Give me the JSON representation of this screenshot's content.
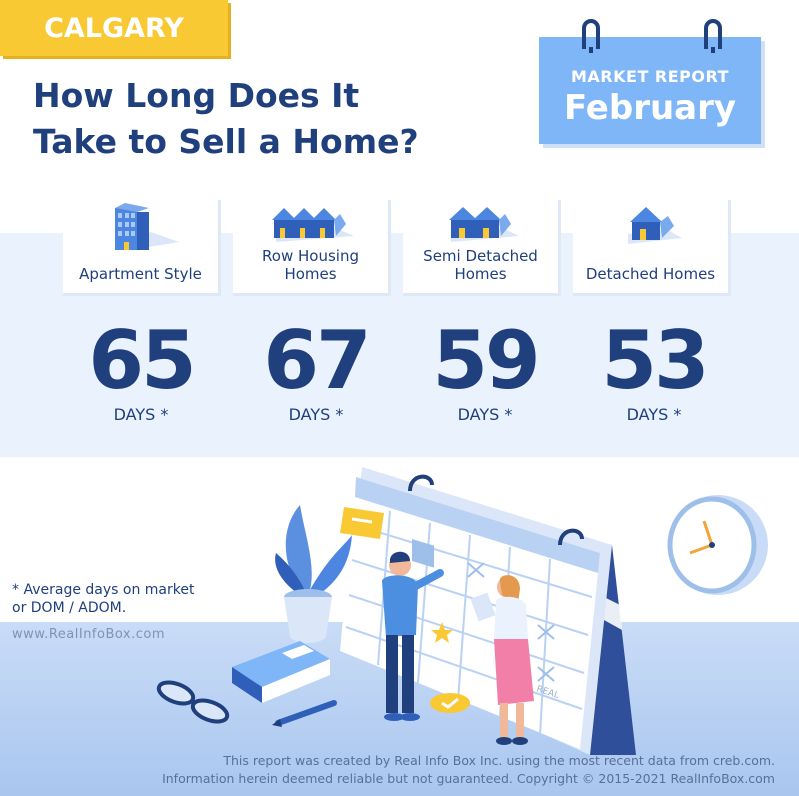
{
  "city": "CALGARY",
  "headline": {
    "line1": "How Long Does It",
    "line2": "Take to Sell a Home?"
  },
  "report": {
    "label": "MARKET REPORT",
    "month": "February"
  },
  "categories": [
    {
      "label_line1": "Apartment Style",
      "label_line2": "",
      "icon": "apartment-building-icon",
      "days": "65",
      "unit": "DAYS *"
    },
    {
      "label_line1": "Row Housing",
      "label_line2": "Homes",
      "icon": "row-houses-icon",
      "days": "67",
      "unit": "DAYS *"
    },
    {
      "label_line1": "Semi Detached",
      "label_line2": "Homes",
      "icon": "semi-detached-icon",
      "days": "59",
      "unit": "DAYS *"
    },
    {
      "label_line1": "Detached Homes",
      "label_line2": "",
      "icon": "detached-house-icon",
      "days": "53",
      "unit": "DAYS *"
    }
  ],
  "footnote": {
    "line1": "* Average days on market",
    "line2": "or DOM / ADOM."
  },
  "website": "www.RealInfoBox.com",
  "calendar_logo": "REAL",
  "copyright": {
    "line1": "This report was created by Real Info Box Inc. using the most recent data from creb.com.",
    "line2": "Information herein deemed reliable but not guaranteed. Copyright © 2015-2021 RealInfoBox.com"
  },
  "colors": {
    "navy": "#1f3f7d",
    "yellow": "#f9c934",
    "sky": "#7fb6f7",
    "band": "#eaf2fd"
  }
}
